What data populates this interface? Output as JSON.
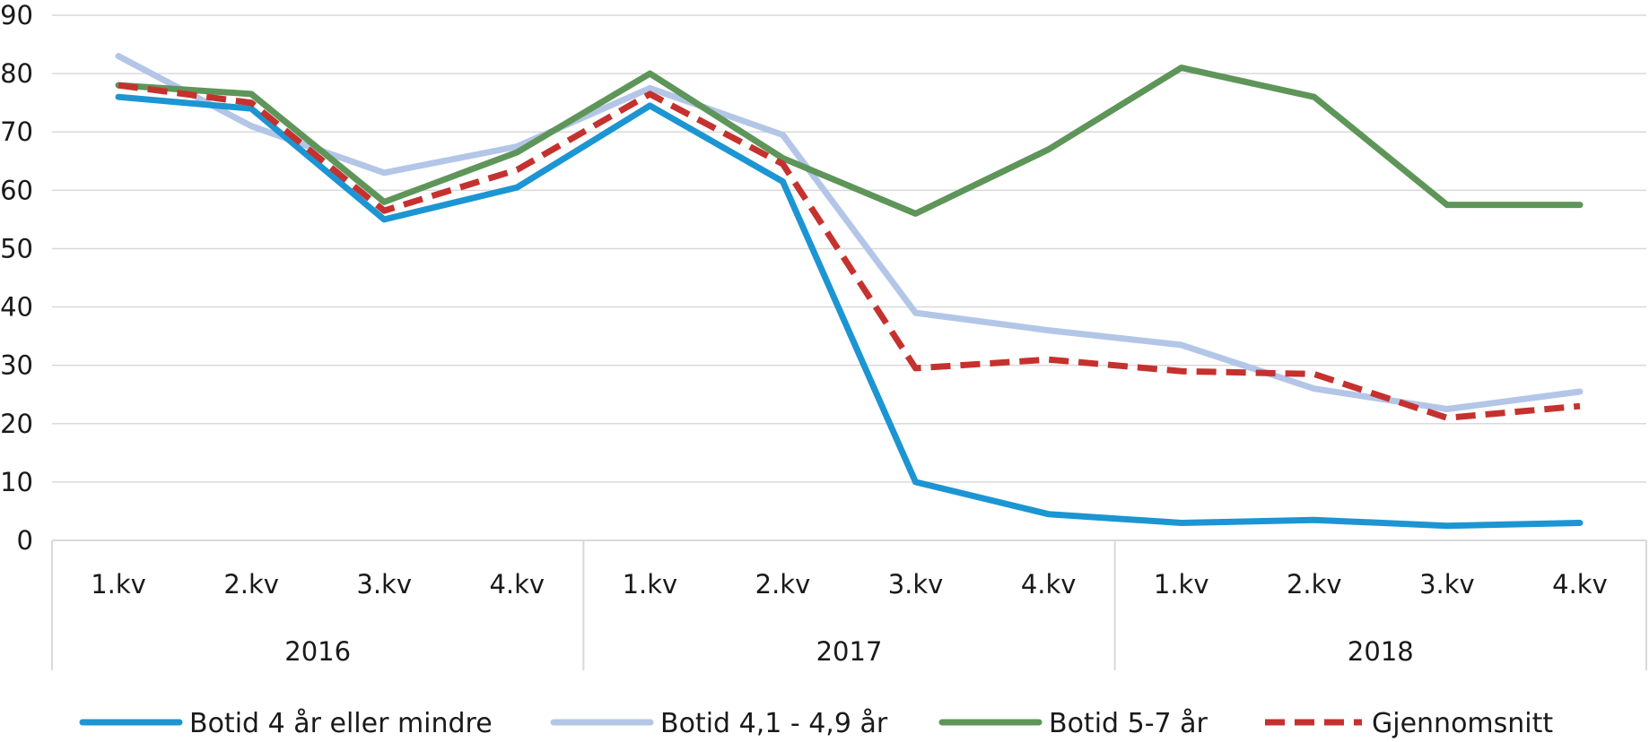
{
  "chart_data": {
    "type": "line",
    "title": "",
    "xlabel": "",
    "ylabel": "",
    "ylim": [
      0,
      90
    ],
    "yticks": [
      0,
      10,
      20,
      30,
      40,
      50,
      60,
      70,
      80,
      90
    ],
    "grid": true,
    "legend_position": "bottom",
    "categories": [
      "1.kv",
      "2.kv",
      "3.kv",
      "4.kv",
      "1.kv",
      "2.kv",
      "3.kv",
      "4.kv",
      "1.kv",
      "2.kv",
      "3.kv",
      "4.kv"
    ],
    "groups": [
      {
        "label": "2016",
        "span": 4
      },
      {
        "label": "2017",
        "span": 4
      },
      {
        "label": "2018",
        "span": 4
      }
    ],
    "series": [
      {
        "name": "Botid 4 år eller mindre",
        "color": "#1c95d3",
        "dash": false,
        "values": [
          76,
          74,
          55,
          60.5,
          74.5,
          61.5,
          10,
          4.5,
          3,
          3.5,
          2.5,
          3
        ]
      },
      {
        "name": "Botid 4,1 - 4,9 år",
        "color": "#b3c6e7",
        "dash": false,
        "values": [
          83,
          71,
          63,
          67.5,
          77.5,
          69.5,
          39,
          36,
          33.5,
          26,
          22.5,
          25.5
        ]
      },
      {
        "name": "Botid 5-7 år",
        "color": "#5e9559",
        "dash": false,
        "values": [
          78,
          76.5,
          58,
          66.5,
          80,
          65.5,
          56,
          67,
          81,
          76,
          57.5,
          57.5
        ]
      },
      {
        "name": "Gjennomsnitt",
        "color": "#c5312e",
        "dash": true,
        "values": [
          78,
          75,
          56.5,
          63.5,
          76.5,
          64.5,
          29.5,
          31,
          29,
          28.5,
          21,
          23
        ]
      }
    ]
  }
}
